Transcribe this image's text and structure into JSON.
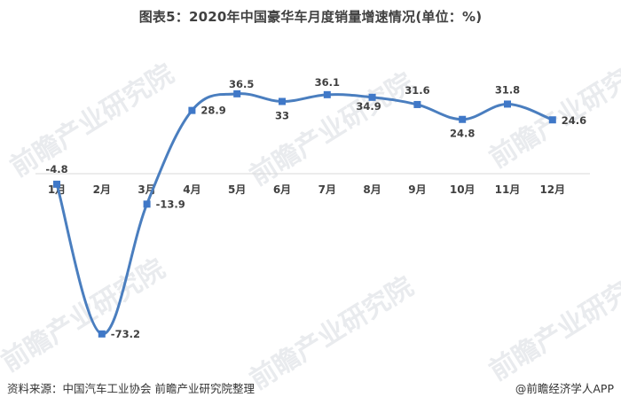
{
  "title": "图表5：2020年中国豪华车月度销量增速情况(单位：%)",
  "footer": {
    "source": "资料来源：中国汽车工业协会 前瞻产业研究院整理",
    "credit": "@前瞻经济学人APP"
  },
  "watermark": {
    "text": "前瞻产业研究院"
  },
  "colors": {
    "line": "#4a7ebf",
    "marker": "#3f78c8",
    "axis": "#d9d9d9",
    "text": "#404040"
  },
  "chart_data": {
    "type": "line",
    "title": "图表5：2020年中国豪华车月度销量增速情况(单位：%)",
    "xlabel": "",
    "ylabel": "%",
    "categories": [
      "1月",
      "2月",
      "3月",
      "4月",
      "5月",
      "6月",
      "7月",
      "8月",
      "9月",
      "10月",
      "11月",
      "12月"
    ],
    "series": [
      {
        "name": "豪华车月度销量增速",
        "values": [
          -4.8,
          -73.2,
          -13.9,
          28.9,
          36.5,
          33,
          36.1,
          34.9,
          31.6,
          24.8,
          31.8,
          24.6
        ]
      }
    ],
    "data_labels": [
      "-4.8",
      "-73.2",
      "-13.9",
      "28.9",
      "36.5",
      "33",
      "36.1",
      "34.9",
      "31.6",
      "24.8",
      "31.8",
      "24.6"
    ],
    "ylim": [
      -80,
      40
    ],
    "grid": false,
    "legend": "none",
    "smooth": true
  }
}
